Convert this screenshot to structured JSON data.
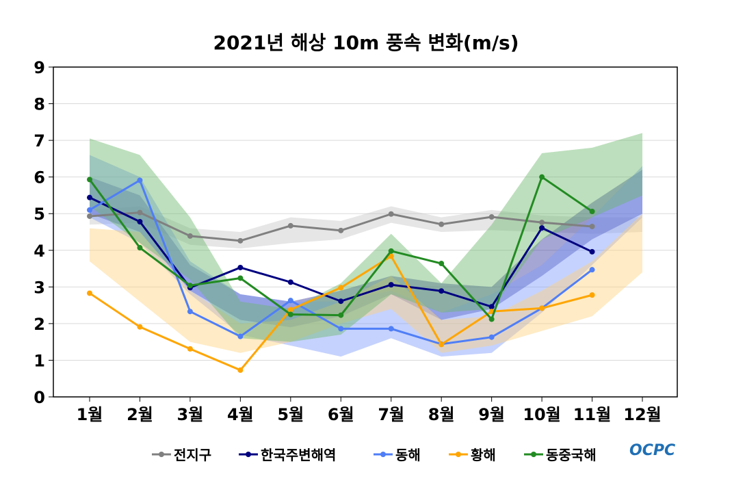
{
  "chart_data": {
    "type": "line",
    "title": "2021년 해상 10m 풍속 변화(m/s)",
    "xlabel": "",
    "ylabel": "",
    "ylim": [
      0,
      9
    ],
    "yticks": [
      "0",
      "1",
      "2",
      "3",
      "4",
      "5",
      "6",
      "7",
      "8",
      "9"
    ],
    "categories": [
      "1월",
      "2월",
      "3월",
      "4월",
      "5월",
      "6월",
      "7월",
      "8월",
      "9월",
      "10월",
      "11월",
      "12월"
    ],
    "grid": true,
    "legend_position": "bottom",
    "series": [
      {
        "name": "전지구",
        "color": "#808080",
        "band_color": "#c8c8c8",
        "values": [
          4.93,
          5.03,
          4.39,
          4.26,
          4.67,
          4.54,
          4.99,
          4.71,
          4.91,
          4.76,
          4.65,
          null
        ],
        "band_upper": [
          5.1,
          5.2,
          4.6,
          4.5,
          4.9,
          4.8,
          5.2,
          4.9,
          5.1,
          4.95,
          4.9,
          4.9
        ],
        "band_lower": [
          4.7,
          4.75,
          4.15,
          4.05,
          4.2,
          4.3,
          4.75,
          4.5,
          4.55,
          4.5,
          4.45,
          4.5
        ]
      },
      {
        "name": "한국주변해역",
        "color": "#000080",
        "band_color": "#3a3aa0",
        "values": [
          5.44,
          4.78,
          2.98,
          3.53,
          3.13,
          2.61,
          3.06,
          2.89,
          2.46,
          4.61,
          3.96,
          null
        ],
        "band_upper": [
          6.0,
          5.5,
          3.6,
          2.8,
          2.6,
          2.9,
          3.3,
          3.1,
          3.0,
          4.3,
          5.3,
          6.2
        ],
        "band_lower": [
          5.0,
          4.5,
          2.9,
          2.1,
          1.9,
          2.2,
          2.8,
          2.1,
          2.4,
          3.3,
          4.3,
          5.0
        ]
      },
      {
        "name": "동해",
        "color": "#4f7ef7",
        "band_color": "#7f9cfb",
        "values": [
          5.1,
          5.91,
          2.33,
          1.65,
          2.63,
          1.86,
          1.86,
          1.44,
          1.63,
          2.42,
          3.47,
          null
        ],
        "band_upper": [
          6.6,
          6.0,
          3.7,
          2.8,
          2.6,
          2.6,
          2.9,
          2.3,
          2.8,
          3.6,
          4.9,
          6.3
        ],
        "band_lower": [
          4.9,
          4.2,
          2.8,
          1.7,
          1.4,
          1.1,
          1.6,
          1.1,
          1.2,
          2.3,
          3.6,
          4.9
        ]
      },
      {
        "name": "황해",
        "color": "#ffa500",
        "band_color": "#ffd27f",
        "values": [
          2.83,
          1.91,
          1.31,
          0.73,
          2.38,
          2.98,
          3.84,
          1.43,
          2.33,
          2.42,
          2.78,
          null
        ],
        "band_upper": [
          4.6,
          4.5,
          2.9,
          2.0,
          2.1,
          2.6,
          3.3,
          2.1,
          2.2,
          2.9,
          3.7,
          5.0
        ],
        "band_lower": [
          3.7,
          2.6,
          1.5,
          1.2,
          1.5,
          2.0,
          2.4,
          1.2,
          1.4,
          1.8,
          2.2,
          3.4
        ]
      },
      {
        "name": "동중국해",
        "color": "#228b22",
        "band_color": "#6cb86c",
        "values": [
          5.93,
          4.07,
          3.04,
          3.24,
          2.25,
          2.23,
          3.98,
          3.64,
          2.12,
          6.0,
          5.06,
          null
        ],
        "band_upper": [
          7.05,
          6.6,
          4.9,
          2.6,
          2.4,
          3.1,
          4.45,
          3.1,
          4.7,
          6.65,
          6.8,
          7.2
        ],
        "band_lower": [
          5.2,
          4.2,
          3.2,
          1.6,
          1.5,
          1.7,
          2.8,
          2.3,
          2.4,
          4.3,
          4.9,
          5.5
        ]
      }
    ]
  },
  "logo_text": "OCPC"
}
